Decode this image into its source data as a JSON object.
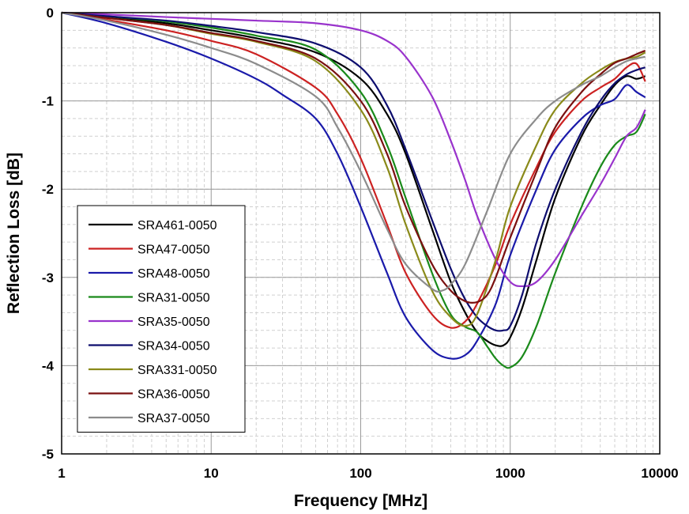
{
  "chart_data": {
    "type": "line",
    "title": "",
    "xlabel": "Frequency [MHz]",
    "ylabel": "Reflection Loss [dB]",
    "xscale": "log",
    "xlim": [
      1,
      10000
    ],
    "ylim": [
      -5,
      0
    ],
    "grid": true,
    "legend_position": "bottom-left",
    "x_ticks": [
      "1",
      "10",
      "100",
      "1000",
      "10000"
    ],
    "y_ticks": [
      "0",
      "-1",
      "-2",
      "-3",
      "-4",
      "-5"
    ],
    "series": [
      {
        "name": "SRA461-0050",
        "color": "#000000",
        "points": [
          [
            1,
            0
          ],
          [
            2,
            -0.05
          ],
          [
            5,
            -0.12
          ],
          [
            10,
            -0.2
          ],
          [
            20,
            -0.29
          ],
          [
            50,
            -0.45
          ],
          [
            100,
            -0.75
          ],
          [
            150,
            -1.15
          ],
          [
            200,
            -1.6
          ],
          [
            300,
            -2.45
          ],
          [
            400,
            -3.05
          ],
          [
            500,
            -3.4
          ],
          [
            600,
            -3.62
          ],
          [
            700,
            -3.72
          ],
          [
            800,
            -3.77
          ],
          [
            900,
            -3.77
          ],
          [
            1000,
            -3.68
          ],
          [
            1200,
            -3.35
          ],
          [
            1500,
            -2.8
          ],
          [
            2000,
            -2.1
          ],
          [
            3000,
            -1.4
          ],
          [
            4000,
            -1.05
          ],
          [
            5000,
            -0.82
          ],
          [
            6000,
            -0.72
          ],
          [
            7000,
            -0.75
          ],
          [
            8000,
            -0.72
          ]
        ]
      },
      {
        "name": "SRA47-0050",
        "color": "#cc2222",
        "points": [
          [
            1,
            0
          ],
          [
            2,
            -0.08
          ],
          [
            5,
            -0.2
          ],
          [
            10,
            -0.32
          ],
          [
            20,
            -0.47
          ],
          [
            50,
            -0.85
          ],
          [
            70,
            -1.15
          ],
          [
            100,
            -1.65
          ],
          [
            150,
            -2.4
          ],
          [
            200,
            -2.95
          ],
          [
            300,
            -3.42
          ],
          [
            400,
            -3.57
          ],
          [
            500,
            -3.5
          ],
          [
            600,
            -3.3
          ],
          [
            800,
            -2.85
          ],
          [
            1000,
            -2.4
          ],
          [
            1500,
            -1.75
          ],
          [
            2000,
            -1.35
          ],
          [
            3000,
            -1.0
          ],
          [
            4000,
            -0.85
          ],
          [
            5000,
            -0.75
          ],
          [
            6000,
            -0.62
          ],
          [
            7000,
            -0.58
          ],
          [
            8000,
            -0.78
          ]
        ]
      },
      {
        "name": "SRA48-0050",
        "color": "#1a1aaa",
        "points": [
          [
            1,
            0
          ],
          [
            2,
            -0.12
          ],
          [
            5,
            -0.33
          ],
          [
            10,
            -0.52
          ],
          [
            20,
            -0.75
          ],
          [
            30,
            -0.93
          ],
          [
            50,
            -1.2
          ],
          [
            70,
            -1.6
          ],
          [
            100,
            -2.2
          ],
          [
            150,
            -2.95
          ],
          [
            200,
            -3.45
          ],
          [
            300,
            -3.82
          ],
          [
            400,
            -3.92
          ],
          [
            500,
            -3.88
          ],
          [
            600,
            -3.72
          ],
          [
            800,
            -3.3
          ],
          [
            1000,
            -2.75
          ],
          [
            1500,
            -2.0
          ],
          [
            2000,
            -1.55
          ],
          [
            3000,
            -1.2
          ],
          [
            4000,
            -1.05
          ],
          [
            5000,
            -0.98
          ],
          [
            6000,
            -0.82
          ],
          [
            7000,
            -0.9
          ],
          [
            8000,
            -0.96
          ]
        ]
      },
      {
        "name": "SRA31-0050",
        "color": "#1a8a1a",
        "points": [
          [
            1,
            0
          ],
          [
            2,
            -0.04
          ],
          [
            5,
            -0.1
          ],
          [
            10,
            -0.17
          ],
          [
            20,
            -0.26
          ],
          [
            50,
            -0.42
          ],
          [
            100,
            -0.9
          ],
          [
            150,
            -1.5
          ],
          [
            200,
            -2.1
          ],
          [
            300,
            -2.95
          ],
          [
            400,
            -3.42
          ],
          [
            500,
            -3.56
          ],
          [
            600,
            -3.62
          ],
          [
            700,
            -3.78
          ],
          [
            800,
            -3.92
          ],
          [
            900,
            -4.0
          ],
          [
            1000,
            -4.02
          ],
          [
            1200,
            -3.9
          ],
          [
            1500,
            -3.55
          ],
          [
            2000,
            -2.95
          ],
          [
            3000,
            -2.2
          ],
          [
            4000,
            -1.75
          ],
          [
            5000,
            -1.5
          ],
          [
            6000,
            -1.4
          ],
          [
            7000,
            -1.35
          ],
          [
            8000,
            -1.15
          ]
        ]
      },
      {
        "name": "SRA35-0050",
        "color": "#9933cc",
        "points": [
          [
            1,
            0
          ],
          [
            2,
            -0.02
          ],
          [
            5,
            -0.05
          ],
          [
            10,
            -0.07
          ],
          [
            20,
            -0.09
          ],
          [
            50,
            -0.12
          ],
          [
            100,
            -0.2
          ],
          [
            150,
            -0.32
          ],
          [
            200,
            -0.5
          ],
          [
            300,
            -0.95
          ],
          [
            400,
            -1.45
          ],
          [
            500,
            -1.9
          ],
          [
            600,
            -2.3
          ],
          [
            800,
            -2.8
          ],
          [
            1000,
            -3.05
          ],
          [
            1200,
            -3.1
          ],
          [
            1500,
            -3.05
          ],
          [
            2000,
            -2.8
          ],
          [
            3000,
            -2.3
          ],
          [
            4000,
            -1.95
          ],
          [
            5000,
            -1.65
          ],
          [
            6000,
            -1.4
          ],
          [
            7000,
            -1.3
          ],
          [
            8000,
            -1.1
          ]
        ]
      },
      {
        "name": "SRA34-0050",
        "color": "#0d0d6e",
        "points": [
          [
            1,
            0
          ],
          [
            2,
            -0.04
          ],
          [
            5,
            -0.09
          ],
          [
            10,
            -0.15
          ],
          [
            20,
            -0.22
          ],
          [
            50,
            -0.35
          ],
          [
            100,
            -0.62
          ],
          [
            150,
            -1.05
          ],
          [
            200,
            -1.55
          ],
          [
            300,
            -2.35
          ],
          [
            400,
            -2.9
          ],
          [
            500,
            -3.25
          ],
          [
            600,
            -3.45
          ],
          [
            700,
            -3.55
          ],
          [
            800,
            -3.6
          ],
          [
            900,
            -3.6
          ],
          [
            1000,
            -3.55
          ],
          [
            1200,
            -3.2
          ],
          [
            1500,
            -2.6
          ],
          [
            2000,
            -2.0
          ],
          [
            3000,
            -1.35
          ],
          [
            4000,
            -1.0
          ],
          [
            5000,
            -0.8
          ],
          [
            6000,
            -0.7
          ],
          [
            7000,
            -0.65
          ],
          [
            8000,
            -0.62
          ]
        ]
      },
      {
        "name": "SRA331-0050",
        "color": "#8a8a1a",
        "points": [
          [
            1,
            0
          ],
          [
            2,
            -0.06
          ],
          [
            5,
            -0.14
          ],
          [
            10,
            -0.24
          ],
          [
            20,
            -0.33
          ],
          [
            50,
            -0.55
          ],
          [
            100,
            -1.1
          ],
          [
            150,
            -1.75
          ],
          [
            200,
            -2.4
          ],
          [
            300,
            -3.15
          ],
          [
            400,
            -3.45
          ],
          [
            500,
            -3.55
          ],
          [
            600,
            -3.42
          ],
          [
            800,
            -2.8
          ],
          [
            1000,
            -2.2
          ],
          [
            1500,
            -1.5
          ],
          [
            2000,
            -1.1
          ],
          [
            3000,
            -0.8
          ],
          [
            4000,
            -0.65
          ],
          [
            5000,
            -0.56
          ],
          [
            6000,
            -0.52
          ],
          [
            7000,
            -0.5
          ],
          [
            8000,
            -0.45
          ]
        ]
      },
      {
        "name": "SRA36-0050",
        "color": "#7a1010",
        "points": [
          [
            1,
            0
          ],
          [
            2,
            -0.06
          ],
          [
            5,
            -0.14
          ],
          [
            10,
            -0.23
          ],
          [
            20,
            -0.32
          ],
          [
            50,
            -0.52
          ],
          [
            100,
            -1.0
          ],
          [
            150,
            -1.6
          ],
          [
            200,
            -2.2
          ],
          [
            300,
            -2.85
          ],
          [
            400,
            -3.15
          ],
          [
            500,
            -3.27
          ],
          [
            600,
            -3.28
          ],
          [
            700,
            -3.2
          ],
          [
            800,
            -3.0
          ],
          [
            1000,
            -2.55
          ],
          [
            1500,
            -1.8
          ],
          [
            2000,
            -1.3
          ],
          [
            3000,
            -0.9
          ],
          [
            4000,
            -0.7
          ],
          [
            5000,
            -0.57
          ],
          [
            6000,
            -0.52
          ],
          [
            7000,
            -0.47
          ],
          [
            8000,
            -0.43
          ]
        ]
      },
      {
        "name": "SRA37-0050",
        "color": "#8c8c8c",
        "points": [
          [
            1,
            0
          ],
          [
            2,
            -0.09
          ],
          [
            5,
            -0.25
          ],
          [
            10,
            -0.4
          ],
          [
            20,
            -0.58
          ],
          [
            50,
            -0.95
          ],
          [
            70,
            -1.3
          ],
          [
            100,
            -1.8
          ],
          [
            150,
            -2.45
          ],
          [
            200,
            -2.85
          ],
          [
            300,
            -3.13
          ],
          [
            350,
            -3.15
          ],
          [
            400,
            -3.08
          ],
          [
            500,
            -2.85
          ],
          [
            700,
            -2.25
          ],
          [
            1000,
            -1.6
          ],
          [
            1500,
            -1.2
          ],
          [
            2000,
            -1.0
          ],
          [
            3000,
            -0.82
          ],
          [
            4000,
            -0.72
          ],
          [
            5000,
            -0.62
          ],
          [
            6000,
            -0.55
          ],
          [
            7000,
            -0.52
          ],
          [
            8000,
            -0.5
          ]
        ]
      }
    ]
  }
}
